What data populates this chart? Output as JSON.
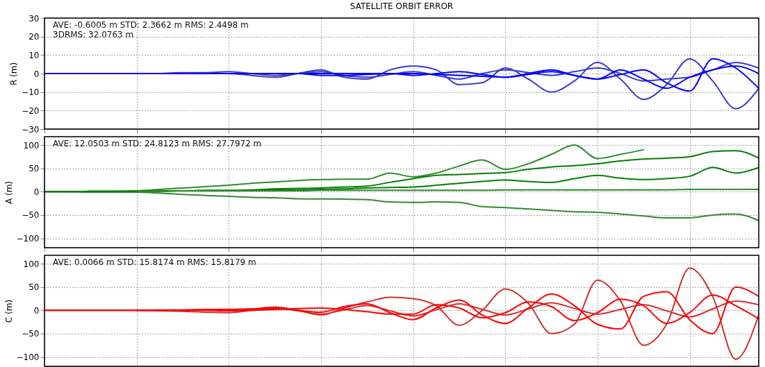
{
  "chart_data": [
    {
      "type": "line",
      "title": "SATELLITE ORBIT ERROR",
      "ylabel": "R (m)",
      "categories": [
        null,
        null,
        null,
        null,
        null,
        null,
        null,
        null,
        null,
        null,
        null,
        null,
        null,
        null,
        null,
        null,
        null,
        null,
        null,
        null,
        null,
        null,
        null,
        null,
        null,
        null,
        null,
        null,
        null,
        null,
        null,
        null
      ],
      "ylim": [
        -30,
        30
      ],
      "yticks": [
        -30,
        -20,
        -10,
        0,
        10,
        20,
        30
      ],
      "grid": true,
      "tick_labels": "y",
      "marker": "none",
      "line_style": "solid",
      "annotations": [
        "AVE: -0.6005 m STD: 2.3662 m RMS: 2.4498 m",
        "3DRMS: 32.0763 m"
      ],
      "series": [
        {
          "color": "#3a3ac8",
          "values": [
            null,
            null,
            null,
            null,
            0,
            0,
            0,
            0,
            0,
            -1,
            -2,
            0,
            2,
            -2,
            -3,
            2,
            4,
            2,
            -6,
            -5,
            3,
            -3,
            -10,
            -4,
            6,
            -3,
            -14,
            -6,
            8,
            -4,
            -19,
            -8
          ]
        },
        {
          "color": "#3a3ac8",
          "values": [
            null,
            null,
            null,
            null,
            0,
            0,
            0.5,
            0.5,
            1,
            0,
            -1,
            0,
            1,
            -1,
            -2,
            -0.5,
            1,
            -1,
            -3,
            0,
            2,
            0.5,
            -1,
            1,
            3,
            0,
            -4,
            -3,
            -2,
            2,
            6,
            3
          ]
        },
        {
          "color": "#0000ff",
          "values": [
            0,
            0,
            0,
            0,
            0,
            0,
            0,
            0,
            0,
            0,
            0,
            0,
            0,
            0,
            0,
            0,
            -1,
            0,
            1,
            -0.5,
            -2,
            -0.5,
            1,
            -1,
            -3,
            -0.5,
            2,
            -5,
            -9.5,
            8,
            3,
            -8
          ]
        },
        {
          "color": "#0000ff",
          "values": [
            0,
            0,
            0,
            0,
            0,
            0,
            0,
            0,
            0,
            0,
            0,
            0,
            -1,
            -1,
            -0.5,
            0,
            0,
            -0.5,
            -1,
            -1.5,
            -2,
            0,
            2,
            -1,
            -3,
            2,
            -3,
            -8,
            -2,
            2,
            4,
            0
          ]
        }
      ]
    },
    {
      "type": "line",
      "ylabel": "A (m)",
      "categories": [
        null,
        null,
        null,
        null,
        null,
        null,
        null,
        null,
        null,
        null,
        null,
        null,
        null,
        null,
        null,
        null,
        null,
        null,
        null,
        null,
        null,
        null,
        null,
        null,
        null,
        null,
        null,
        null,
        null,
        null,
        null,
        null
      ],
      "ylim": [
        -120,
        118
      ],
      "yticks": [
        -100,
        -50,
        0,
        50,
        100
      ],
      "grid": true,
      "tick_labels": "y",
      "marker": "none",
      "line_style": "solid",
      "annotations": [
        "AVE: 12.0503 m STD: 24.8123 m RMS: 27.7972 m"
      ],
      "series": [
        {
          "color": "#2e8b2e",
          "values": [
            0,
            0,
            1,
            1,
            2,
            5,
            8,
            11,
            14,
            18,
            21,
            24,
            26,
            27,
            27,
            40,
            32,
            40,
            55,
            68,
            48,
            60,
            80,
            100,
            71,
            80,
            90,
            null,
            null,
            null,
            null,
            null
          ]
        },
        {
          "color": "#2e8b2e",
          "values": [
            0,
            0,
            -1,
            -1,
            -1,
            -3,
            -6,
            -8,
            -10,
            -12,
            -13,
            -15,
            -15.5,
            -16,
            -17,
            -22,
            -23,
            -22,
            -23,
            -32,
            -34,
            -37,
            -40,
            -43,
            -44,
            -48,
            -52,
            -56,
            -56,
            -50,
            -48,
            -62
          ]
        },
        {
          "color": "#007f00",
          "values": [
            0,
            0,
            1,
            1,
            1,
            2,
            2,
            3,
            3,
            4,
            6,
            7,
            8,
            10,
            12,
            20,
            28,
            35,
            37,
            39,
            41,
            48,
            53,
            56,
            60,
            66,
            70,
            72,
            75,
            86,
            88,
            72
          ]
        },
        {
          "color": "#007f00",
          "values": [
            0,
            0,
            1,
            1,
            1,
            1,
            2,
            2,
            2,
            3,
            4,
            4,
            5,
            6,
            8,
            9,
            10,
            14,
            18,
            22,
            25,
            22,
            20,
            28,
            35,
            29,
            26,
            28,
            33,
            52,
            40,
            52
          ]
        },
        {
          "color": "#2e8b2e",
          "values": [
            null,
            null,
            null,
            null,
            1,
            1,
            2,
            2,
            2,
            2,
            2,
            2,
            3,
            3,
            3,
            3,
            3,
            3,
            3,
            3,
            4,
            4,
            4,
            4,
            4,
            4,
            4,
            4,
            5,
            5,
            5,
            5
          ]
        }
      ]
    },
    {
      "type": "line",
      "ylabel": "C (m)",
      "categories": [
        null,
        null,
        null,
        null,
        null,
        null,
        null,
        null,
        null,
        null,
        null,
        null,
        null,
        null,
        null,
        null,
        null,
        null,
        null,
        null,
        null,
        null,
        null,
        null,
        null,
        null,
        null,
        null,
        null,
        null,
        null,
        null
      ],
      "ylim": [
        -120,
        118
      ],
      "yticks": [
        -100,
        -50,
        0,
        50,
        100
      ],
      "grid": true,
      "tick_labels": "y",
      "marker": "none",
      "line_style": "solid",
      "annotations": [
        "AVE: 0.0066 m STD: 15.8174 m RMS: 15.8179 m"
      ],
      "series": [
        {
          "color": "#d03030",
          "values": [
            null,
            null,
            null,
            null,
            0,
            0,
            0,
            0,
            0,
            3,
            7,
            0,
            -10,
            5,
            18,
            28,
            25,
            10,
            -32,
            0,
            46,
            15,
            -50,
            -30,
            65,
            20,
            -75,
            -30,
            91,
            30,
            -105,
            -10
          ]
        },
        {
          "color": "#d03030",
          "values": [
            null,
            null,
            null,
            null,
            0,
            -1,
            -2,
            -4,
            -5,
            0,
            6,
            -1,
            -8,
            1,
            10,
            -1,
            -12,
            1,
            14,
            2,
            -10,
            3,
            16,
            4,
            -8,
            2,
            12,
            -1,
            -14,
            3,
            20,
            12
          ]
        },
        {
          "color": "#ff0000",
          "values": [
            0,
            0,
            0,
            0,
            0,
            1,
            1,
            2,
            2,
            3,
            4,
            0,
            -4,
            8,
            14,
            -5,
            -20,
            5,
            22,
            -10,
            -28,
            5,
            35,
            10,
            -30,
            -40,
            30,
            40,
            -20,
            -50,
            50,
            30
          ]
        },
        {
          "color": "#ff0000",
          "values": [
            0,
            0,
            0,
            0,
            0,
            0,
            0,
            0,
            -1,
            0,
            2,
            4,
            5,
            2,
            -3,
            -8,
            -8,
            12,
            5,
            -16,
            -5,
            18,
            8,
            -22,
            -5,
            24,
            10,
            -28,
            -5,
            33,
            10,
            -18
          ]
        }
      ]
    }
  ]
}
